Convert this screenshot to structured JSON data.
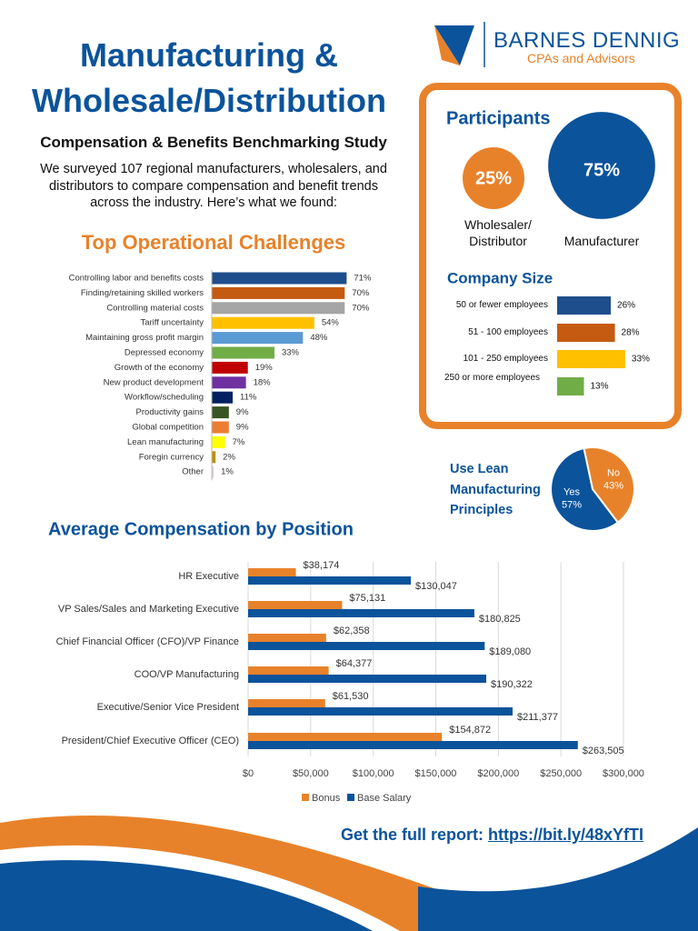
{
  "header": {
    "title": "Manufacturing & Wholesale/Distribution",
    "subtitle": "Compensation & Benefits Benchmarking Study",
    "intro": "We surveyed 107 regional manufacturers, wholesalers, and distributors to compare compensation and benefit trends across the industry. Here’s what we found:"
  },
  "logo": {
    "name": "BARNES DENNIG",
    "tagline": "CPAs and Advisors"
  },
  "footer": {
    "text": "Get the full report:",
    "link": "https://bit.ly/48xYfTI"
  },
  "chart_data": [
    {
      "type": "bar",
      "orientation": "horizontal",
      "title": "Top Operational Challenges",
      "categories": [
        "Controlling labor and benefits costs",
        "Finding/retaining skilled workers",
        "Controlling material costs",
        "Tariff uncertainty",
        "Maintaining gross profit margin",
        "Depressed economy",
        "Growth of the economy",
        "New product development",
        "Workflow/scheduling",
        "Productivity gains",
        "Global competition",
        "Lean manufacturing",
        "Foregin currency",
        "Other"
      ],
      "values": [
        71,
        70,
        70,
        54,
        48,
        33,
        19,
        18,
        11,
        9,
        9,
        7,
        2,
        1
      ],
      "value_labels": [
        "71%",
        "70%",
        "70%",
        "54%",
        "48%",
        "33%",
        "19%",
        "18%",
        "11%",
        "9%",
        "9%",
        "7%",
        "2%",
        "1%"
      ],
      "colors": [
        "#1f4e8c",
        "#c55a11",
        "#a5a5a5",
        "#ffc000",
        "#5b9bd5",
        "#70ad47",
        "#c00000",
        "#7030a0",
        "#002060",
        "#375623",
        "#ed7d31",
        "#ffff00",
        "#bf8f00",
        "#e6cccc"
      ]
    },
    {
      "type": "circles",
      "title": "Participants",
      "categories": [
        "Wholesaler/ Distributor",
        "Manufacturer"
      ],
      "values": [
        25,
        75
      ],
      "value_labels": [
        "25%",
        "75%"
      ],
      "colors": [
        "#e8822a",
        "#0b539b"
      ]
    },
    {
      "type": "bar",
      "orientation": "horizontal",
      "title": "Company Size",
      "categories": [
        "50 or fewer employees",
        "51 - 100 employees",
        "101 - 250 employees",
        "250 or more employees"
      ],
      "values": [
        26,
        28,
        33,
        13
      ],
      "value_labels": [
        "26%",
        "28%",
        "33%",
        "13%"
      ],
      "colors": [
        "#1f4e8c",
        "#c55a11",
        "#ffc000",
        "#70ad47"
      ]
    },
    {
      "type": "pie",
      "title": "Use Lean Manufacturing Principles",
      "categories": [
        "No",
        "Yes"
      ],
      "values": [
        43,
        57
      ],
      "value_labels": [
        "43%",
        "57%"
      ],
      "colors": [
        "#e8822a",
        "#0b539b"
      ]
    },
    {
      "type": "grouped-bar",
      "orientation": "horizontal",
      "title": "Average Compensation by Position",
      "categories": [
        "HR Executive",
        "VP Sales/Sales and Marketing Executive",
        "Chief Financial Officer (CFO)/VP Finance",
        "COO/VP Manufacturing",
        "Executive/Senior Vice President",
        "President/Chief Executive Officer (CEO)"
      ],
      "series": [
        {
          "name": "Bonus",
          "color": "#e8822a",
          "values": [
            38174,
            75131,
            62358,
            64377,
            61530,
            154872
          ],
          "value_labels": [
            "$38,174",
            "$75,131",
            "$62,358",
            "$64,377",
            "$61,530",
            "$154,872"
          ]
        },
        {
          "name": "Base Salary",
          "color": "#0b539b",
          "values": [
            130047,
            180825,
            189080,
            190322,
            211377,
            263505
          ],
          "value_labels": [
            "$130,047",
            "$180,825",
            "$189,080",
            "$190,322",
            "$211,377",
            "$263,505"
          ]
        }
      ],
      "xlim": [
        0,
        300000
      ],
      "xticks": [
        {
          "value": 0,
          "label": "$0"
        },
        {
          "value": 50000,
          "label": "$50,000"
        },
        {
          "value": 100000,
          "label": "$100,000"
        },
        {
          "value": 150000,
          "label": "$150,000"
        },
        {
          "value": 200000,
          "label": "$200,000"
        },
        {
          "value": 250000,
          "label": "$250,000"
        },
        {
          "value": 300000,
          "label": "$300,000"
        }
      ],
      "grid": true,
      "legend": "bottom"
    }
  ]
}
